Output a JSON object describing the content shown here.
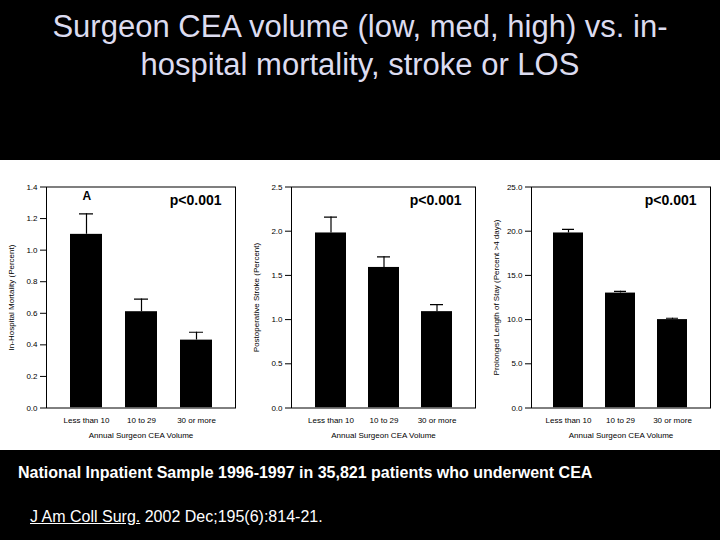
{
  "title": "Surgeon CEA volume (low, med, high) vs. in-hospital mortality, stroke or LOS",
  "caption": "National Inpatient Sample 1996-1997 in 35,821 patients who underwent CEA",
  "citation_journal": "J Am Coll Surg.",
  "citation_rest": "2002 Dec;195(6):814-21.",
  "chart_data": [
    {
      "type": "bar",
      "panel_label": "A",
      "annotation": "p<0.001",
      "x_label": "Annual Surgeon CEA Volume",
      "y_label": "In-Hospital Mortality (Percent)",
      "categories": [
        "Less than 10",
        "10 to 29",
        "30 or more"
      ],
      "values": [
        1.1,
        0.61,
        0.43
      ],
      "errors": [
        0.13,
        0.08,
        0.05
      ],
      "color": "#000000",
      "ylim": [
        0,
        1.4
      ],
      "yticks": [
        {
          "value": 0,
          "label": "0.0"
        },
        0.2,
        0.4,
        0.6,
        0.8,
        {
          "value": 1,
          "label": "1.0"
        },
        1.2,
        1.4
      ]
    },
    {
      "type": "bar",
      "annotation": "p<0.001",
      "x_label": "Annual Surgeon CEA Volume",
      "y_label": "Postoperative Stroke (Percent)",
      "categories": [
        "Less than 10",
        "10 to 29",
        "30 or more"
      ],
      "values": [
        1.98,
        1.59,
        1.09
      ],
      "errors": [
        0.18,
        0.12,
        0.08
      ],
      "color": "#000000",
      "ylim": [
        0,
        2.5
      ],
      "yticks": [
        {
          "value": 0,
          "label": "0.0"
        },
        0.5,
        {
          "value": 1,
          "label": "1.0"
        },
        1.5,
        {
          "value": 2,
          "label": "2.0"
        },
        2.5
      ]
    },
    {
      "type": "bar",
      "annotation": "p<0.001",
      "x_label": "Annual Surgeon CEA Volume",
      "y_label": "Prolonged Length of Stay (Percent >4 days)",
      "categories": [
        "Less than 10",
        "10 to 29",
        "30 or more"
      ],
      "values": [
        19.8,
        13.0,
        10.0
      ],
      "errors": [
        0.4,
        0.2,
        0.15
      ],
      "color": "#000000",
      "ylim": [
        0,
        25
      ],
      "yticks": [
        {
          "value": 0,
          "label": "0.0"
        },
        {
          "value": 5,
          "label": "5.0"
        },
        {
          "value": 10,
          "label": "10.0"
        },
        {
          "value": 15,
          "label": "15.0"
        },
        {
          "value": 20,
          "label": "20.0"
        },
        {
          "value": 25,
          "label": "25.0"
        }
      ]
    }
  ]
}
